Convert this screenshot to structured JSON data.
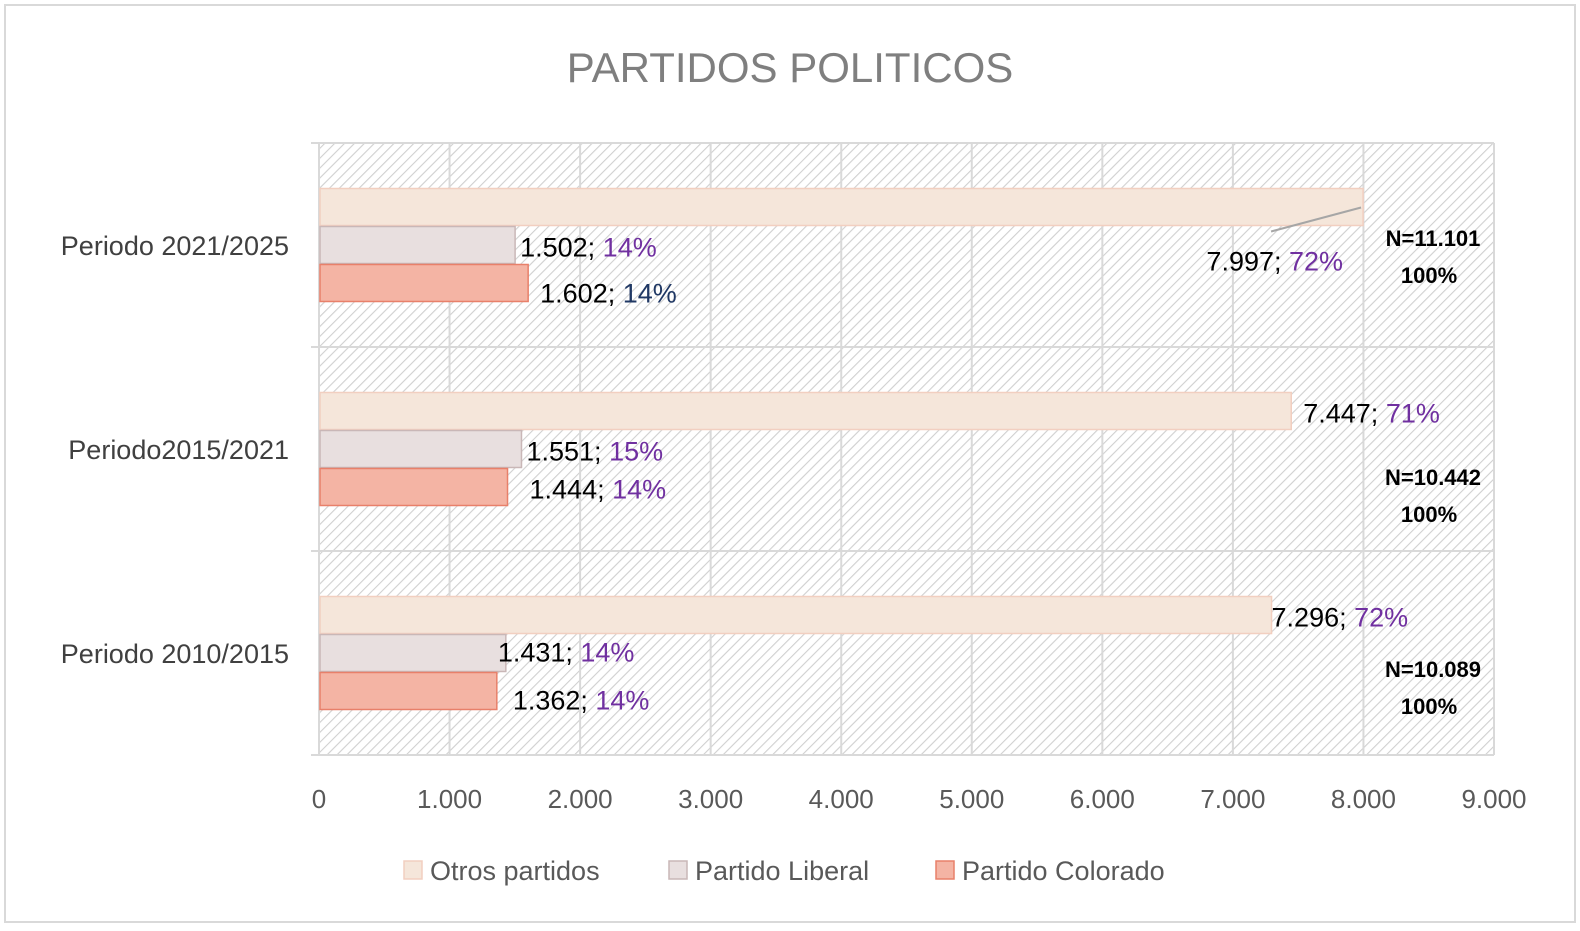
{
  "chart_data": {
    "type": "bar",
    "orientation": "horizontal",
    "title": "PARTIDOS POLITICOS",
    "categories": [
      "Periodo 2021/2025",
      "Periodo2015/2021",
      "Periodo 2010/2015"
    ],
    "series": [
      {
        "name": "Otros partidos",
        "values": [
          7997,
          7447,
          7296
        ],
        "labels": [
          "7.997",
          "7.447",
          "7.296"
        ],
        "percent_labels": [
          "72%",
          "71%",
          "72%"
        ],
        "color": "#f5e6da",
        "border": "#f2cfc0"
      },
      {
        "name": "Partido Liberal",
        "values": [
          1502,
          1551,
          1431
        ],
        "labels": [
          "1.502",
          "1.551",
          "1.431"
        ],
        "percent_labels": [
          "14%",
          "15%",
          "14%"
        ],
        "color": "#e8dfdf",
        "border": "#c9b7b7"
      },
      {
        "name": "Partido Colorado",
        "values": [
          1602,
          1444,
          1362
        ],
        "labels": [
          "1.602",
          "1.444",
          "1.362"
        ],
        "percent_labels": [
          "14%",
          "14%",
          "14%"
        ],
        "color": "#f4b4a4",
        "border": "#e8806a"
      }
    ],
    "totals": [
      {
        "n": "N=11.101",
        "pct": "100%"
      },
      {
        "n": "N=10.442",
        "pct": "100%"
      },
      {
        "n": "N=10.089",
        "pct": "100%"
      }
    ],
    "xlim": [
      0,
      9000
    ],
    "xticks": [
      0,
      1000,
      2000,
      3000,
      4000,
      5000,
      6000,
      7000,
      8000,
      9000
    ],
    "xtick_labels": [
      "0",
      "1.000",
      "2.000",
      "3.000",
      "4.000",
      "5.000",
      "6.000",
      "7.000",
      "8.000",
      "9.000"
    ],
    "grid": true,
    "legend_position": "bottom",
    "colors": {
      "label_value": "#000000",
      "label_percent": "#7030a0",
      "label_percent_alt": "#203864",
      "grid": "#d9d9d9",
      "hatch": "#d9d9d9"
    }
  }
}
